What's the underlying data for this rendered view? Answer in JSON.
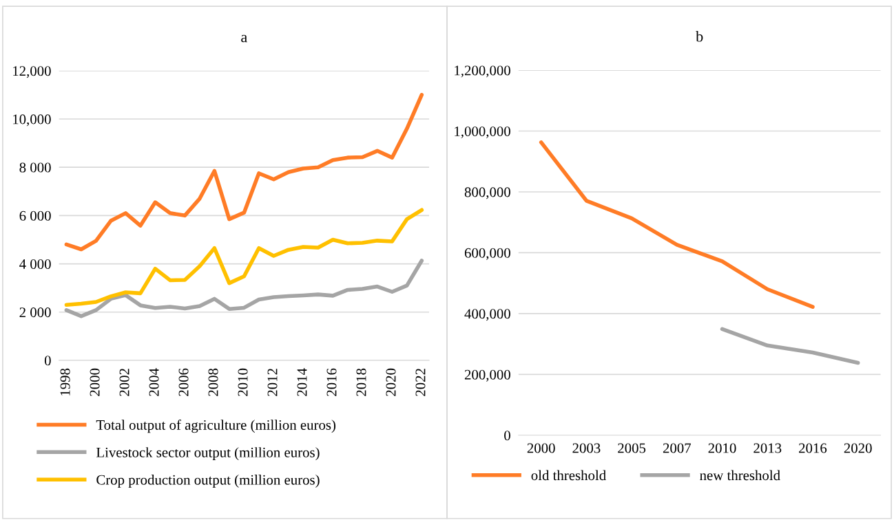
{
  "chart_data": [
    {
      "type": "line",
      "title": "a",
      "categories": [
        "1998",
        null,
        "2000",
        null,
        "2002",
        null,
        "2004",
        null,
        "2006",
        null,
        "2008",
        null,
        "2010",
        null,
        "2012",
        null,
        "2014",
        null,
        "2016",
        null,
        "2018",
        null,
        "2020",
        null,
        "2022"
      ],
      "series": [
        {
          "name": "Total output of agriculture (million euros)",
          "color": "#ff7c26",
          "values": [
            4800,
            4600,
            4950,
            5780,
            6100,
            5580,
            6550,
            6100,
            6000,
            6700,
            7850,
            5850,
            6120,
            7750,
            7500,
            7800,
            7950,
            8000,
            8300,
            8400,
            8420,
            8680,
            8400,
            9600,
            11000
          ]
        },
        {
          "name": "Livestock sector output (million euros)",
          "color": "#a5a5a5",
          "values": [
            2080,
            1830,
            2080,
            2550,
            2700,
            2280,
            2170,
            2220,
            2150,
            2250,
            2550,
            2130,
            2180,
            2520,
            2620,
            2660,
            2690,
            2730,
            2680,
            2920,
            2960,
            3060,
            2840,
            3100,
            4130
          ]
        },
        {
          "name": "Crop production output (million euros)",
          "color": "#ffc000",
          "values": [
            2300,
            2350,
            2420,
            2650,
            2820,
            2780,
            3800,
            3320,
            3330,
            3900,
            4650,
            3200,
            3480,
            4650,
            4330,
            4580,
            4700,
            4670,
            5000,
            4850,
            4870,
            4960,
            4930,
            5850,
            6230
          ]
        }
      ],
      "ylim": [
        0,
        12000
      ],
      "yticks": [
        0,
        {
          "value": 2000,
          "label": "2 000"
        },
        {
          "value": 4000,
          "label": "4 000"
        },
        {
          "value": 6000,
          "label": "6 000"
        },
        {
          "value": 8000,
          "label": "8 000"
        },
        {
          "value": 10000,
          "label": "10,000"
        },
        {
          "value": 12000,
          "label": "12,000"
        }
      ],
      "grid": "y",
      "legend": "bottom",
      "marker": "none",
      "line_style": "solid"
    },
    {
      "type": "line",
      "title": "b",
      "categories": [
        "2000",
        "2003",
        "2005",
        "2007",
        "2010",
        "2013",
        "2016",
        "2020"
      ],
      "series": [
        {
          "name": "old threshold",
          "color": "#ff7c26",
          "values": [
            963000,
            771000,
            713000,
            626000,
            572000,
            480000,
            422000,
            null
          ]
        },
        {
          "name": "new threshold",
          "color": "#a5a5a5",
          "values": [
            null,
            null,
            null,
            null,
            349000,
            295000,
            272000,
            238000
          ]
        }
      ],
      "ylim": [
        0,
        1200000
      ],
      "yticks": [
        0,
        {
          "value": 200000,
          "label": "200,000"
        },
        {
          "value": 400000,
          "label": "400,000"
        },
        {
          "value": 600000,
          "label": "600,000"
        },
        {
          "value": 800000,
          "label": "800,000"
        },
        {
          "value": 1000000,
          "label": "1,000,000"
        },
        {
          "value": 1200000,
          "label": "1,200,000"
        }
      ],
      "grid": "y",
      "legend": "bottom",
      "marker": "none",
      "line_style": "solid"
    }
  ]
}
